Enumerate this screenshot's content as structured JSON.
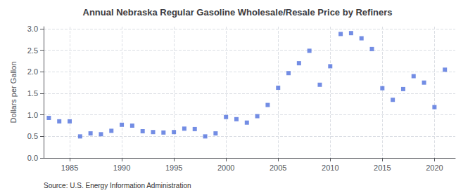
{
  "chart_data": {
    "type": "scatter",
    "title": "Annual Nebraska Regular Gasoline Wholesale/Resale Price by Refiners",
    "ylabel": "Dollars per Gallon",
    "source": "Source: U.S. Energy Information Administration",
    "marker": "square",
    "grid": true,
    "xlim": [
      1982.5,
      2022
    ],
    "xticks": [
      1985,
      1990,
      1995,
      2000,
      2005,
      2010,
      2015,
      2020
    ],
    "ylim": [
      0.0,
      3.05
    ],
    "yticks": [
      {
        "value": 0.0,
        "label": "0.0"
      },
      0.5,
      {
        "value": 1.0,
        "label": "1.0"
      },
      1.5,
      {
        "value": 2.0,
        "label": "2.0"
      },
      2.5,
      {
        "value": 3.0,
        "label": "3.0"
      }
    ],
    "x": [
      1983,
      1984,
      1985,
      1986,
      1987,
      1988,
      1989,
      1990,
      1991,
      1992,
      1993,
      1994,
      1995,
      1996,
      1997,
      1998,
      1999,
      2000,
      2001,
      2002,
      2003,
      2004,
      2005,
      2006,
      2007,
      2008,
      2009,
      2010,
      2011,
      2012,
      2013,
      2014,
      2015,
      2016,
      2017,
      2018,
      2019,
      2020,
      2021
    ],
    "values": [
      0.93,
      0.85,
      0.85,
      0.5,
      0.57,
      0.55,
      0.63,
      0.77,
      0.75,
      0.62,
      0.6,
      0.59,
      0.6,
      0.68,
      0.67,
      0.5,
      0.57,
      0.95,
      0.9,
      0.82,
      0.97,
      1.23,
      1.63,
      1.97,
      2.2,
      2.49,
      1.7,
      2.13,
      2.88,
      2.9,
      2.78,
      2.53,
      1.62,
      1.35,
      1.6,
      1.9,
      1.75,
      1.18,
      2.05
    ]
  }
}
